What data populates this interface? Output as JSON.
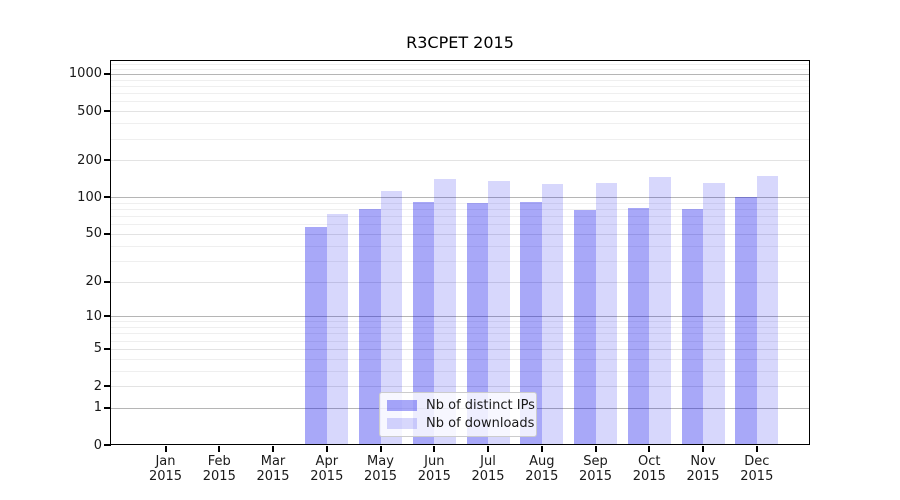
{
  "page": {
    "background": "#ffffff"
  },
  "chart_data": {
    "type": "bar",
    "title": "R3CPET 2015",
    "categories": [
      "Jan",
      "Feb",
      "Mar",
      "Apr",
      "May",
      "Jun",
      "Jul",
      "Aug",
      "Sep",
      "Oct",
      "Nov",
      "Dec"
    ],
    "category_year": "2015",
    "series": [
      {
        "name": "Nb of distinct IPs",
        "color": "rgba(0,0,235,0.34)",
        "values": [
          0,
          0,
          0,
          57,
          80,
          92,
          90,
          91,
          79,
          82,
          80,
          100
        ]
      },
      {
        "name": "Nb of downloads",
        "color": "rgba(0,0,235,0.155)",
        "values": [
          0,
          0,
          0,
          73,
          112,
          140,
          136,
          128,
          130,
          145,
          130,
          150
        ]
      }
    ],
    "yticks": [
      0,
      1,
      2,
      5,
      10,
      20,
      50,
      100,
      200,
      500,
      1000
    ],
    "yscale": "log10(1+x)",
    "ylim": [
      0,
      1300
    ],
    "grid": true,
    "decade_grid_values": [
      1,
      10,
      100,
      1000
    ],
    "major_grid_values": [
      2,
      5,
      20,
      50,
      200,
      500
    ],
    "minor_grid_values": [
      3,
      4,
      6,
      7,
      8,
      9,
      30,
      40,
      60,
      70,
      80,
      90,
      300,
      400,
      600,
      700,
      800,
      900,
      1100,
      1200
    ],
    "legend": {
      "position": "lower center-left"
    },
    "colors": {
      "axis": "#000000",
      "text": "#1a1a1a",
      "decade_grid": "#b5b5b5",
      "major_grid": "#e3e3e3",
      "minor_grid": "#efefef",
      "bar_distinct_ips": "#a9a9f8",
      "bar_downloads": "#d9d9f8"
    }
  }
}
